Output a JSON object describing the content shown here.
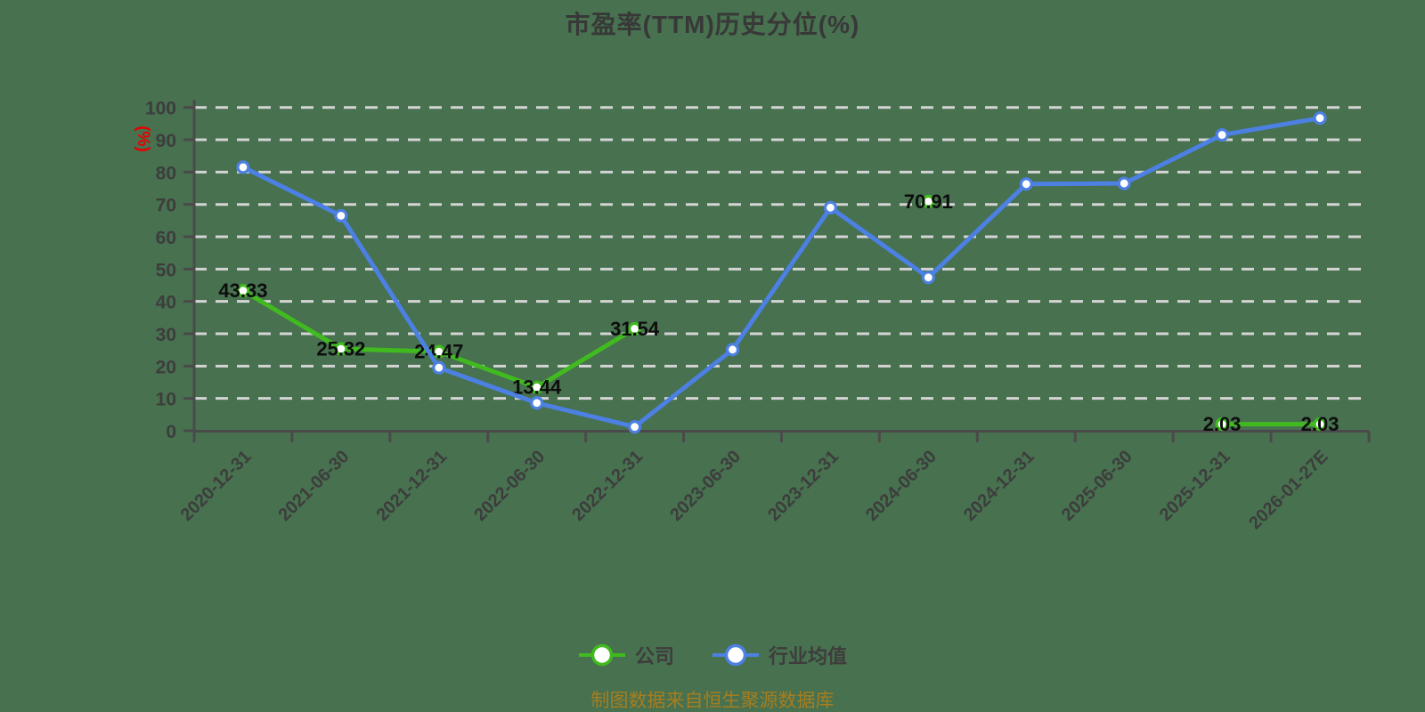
{
  "title": "市盈率(TTM)历史分位(%)",
  "footer": {
    "text": "制图数据来自恒生聚源数据库"
  },
  "colors": {
    "background": "#47714f",
    "grid": "#d4d4d4",
    "axis": "#4a4a4a",
    "tick_text": "#3d3d3d",
    "title_text": "#383838",
    "point_label_text": "#0d0d0d",
    "ylabel_text": "#e60000",
    "footer_text": "#a87d1e",
    "company_green": "#41ba20",
    "industry_blue": "#4c80e2"
  },
  "chart_data": {
    "type": "line",
    "title": "市盈率(TTM)历史分位(%)",
    "xlabel": "",
    "ylabel": "(%)",
    "ylim": [
      0,
      100
    ],
    "yticks": [
      0,
      10,
      20,
      30,
      40,
      50,
      60,
      70,
      80,
      90,
      100
    ],
    "grid": "horizontal-dashed",
    "legend_position": "bottom",
    "categories": [
      "2020-12-31",
      "2021-06-30",
      "2021-12-31",
      "2022-06-30",
      "2022-12-31",
      "2023-06-30",
      "2023-12-31",
      "2024-06-30",
      "2024-12-31",
      "2025-06-30",
      "2025-12-31",
      "2026-01-27E"
    ],
    "series": [
      {
        "name": "公司",
        "color": "#41ba20",
        "point_labels": true,
        "values": [
          43.33,
          25.32,
          24.47,
          13.44,
          31.54,
          null,
          null,
          70.91,
          null,
          null,
          2.03,
          2.03
        ]
      },
      {
        "name": "行业均值",
        "color": "#4c80e2",
        "point_labels": false,
        "values": [
          81.5,
          66.5,
          19.5,
          8.6,
          1.2,
          25.1,
          69.0,
          47.4,
          76.3,
          76.5,
          91.5,
          96.7
        ]
      }
    ]
  },
  "legend": {
    "items": [
      {
        "label": "公司"
      },
      {
        "label": "行业均值"
      }
    ]
  }
}
